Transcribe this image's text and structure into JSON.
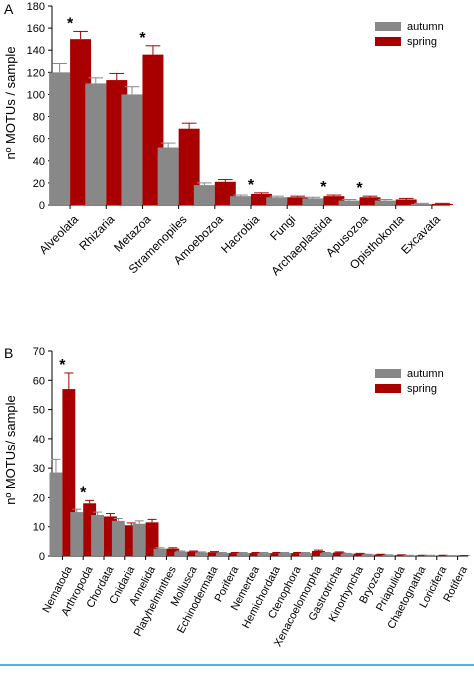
{
  "chart_data": [
    {
      "panel_label": "A",
      "type": "bar",
      "title": "",
      "xlabel": "",
      "ylabel": "nº MOTUs / sample",
      "ylim": [
        0,
        180
      ],
      "yticks": [
        0,
        20,
        40,
        60,
        80,
        100,
        120,
        140,
        160,
        180
      ],
      "legend_position": "top-right",
      "categories": [
        "Alveolata",
        "Rhizaria",
        "Metazoa",
        "Stramenopiles",
        "Amoebozoa",
        "Hacrobia",
        "Fungi",
        "Archaeplastida",
        "Apusozoa",
        "Opisthokonta",
        "Excavata"
      ],
      "series": [
        {
          "name": "autumn",
          "color": "#888888",
          "values": [
            120,
            110,
            100,
            52,
            18,
            8,
            7,
            6,
            4,
            4,
            1
          ],
          "errors": [
            8,
            5,
            7,
            4,
            2,
            1,
            1,
            1,
            1,
            1,
            0.5
          ]
        },
        {
          "name": "spring",
          "color": "#a80000",
          "values": [
            150,
            113,
            136,
            69,
            21,
            10,
            7,
            8,
            7,
            5,
            1
          ],
          "errors": [
            7,
            6,
            8,
            5,
            2,
            1,
            1,
            1,
            1,
            1,
            0.5
          ]
        }
      ],
      "significance": [
        {
          "category": "Alveolata",
          "label": "*"
        },
        {
          "category": "Metazoa",
          "label": "*"
        },
        {
          "category": "Hacrobia",
          "label": "*"
        },
        {
          "category": "Archaeplastida",
          "label": "*"
        },
        {
          "category": "Apusozoa",
          "label": "*"
        }
      ]
    },
    {
      "panel_label": "B",
      "type": "bar",
      "title": "",
      "xlabel": "",
      "ylabel": "nº MOTUs/ sample",
      "ylim": [
        0,
        70
      ],
      "yticks": [
        0,
        10,
        20,
        30,
        40,
        50,
        60,
        70
      ],
      "legend_position": "top-right",
      "categories": [
        "Nematoda",
        "Arthropoda",
        "Chordata",
        "Cnidaria",
        "Annelida",
        "Platyhelminthes",
        "Mollusca",
        "Echinodermata",
        "Porifera",
        "Nemertea",
        "Hemichordata",
        "Ctenophora",
        "Xenacoelomorpha",
        "Gastrotricha",
        "Kinorhyncha",
        "Bryozoa",
        "Priapulida",
        "Chaetognatha",
        "Loricifera",
        "Rotifera"
      ],
      "series": [
        {
          "name": "autumn",
          "color": "#888888",
          "values": [
            28.5,
            15,
            14,
            12,
            11,
            2.5,
            1.5,
            1.2,
            1,
            1,
            1,
            1,
            1,
            1,
            0.8,
            0.5,
            0.3,
            0.2,
            0.2,
            0.1
          ],
          "errors": [
            4.5,
            1,
            1,
            0.8,
            1,
            0.3,
            0.2,
            0.2,
            0.2,
            0.2,
            0.2,
            0.2,
            0.2,
            0.2,
            0.1,
            0.1,
            0.1,
            0.05,
            0.05,
            0.05
          ]
        },
        {
          "name": "spring",
          "color": "#a80000",
          "values": [
            57,
            18,
            13.5,
            10.5,
            11.5,
            2.5,
            1.5,
            1.3,
            1,
            1,
            1,
            1,
            1.7,
            1.2,
            0.8,
            0.5,
            0.3,
            0.2,
            0.2,
            0.1
          ],
          "errors": [
            5.5,
            1,
            1,
            0.8,
            1,
            0.3,
            0.2,
            0.2,
            0.2,
            0.2,
            0.2,
            0.2,
            0.3,
            0.2,
            0.1,
            0.1,
            0.1,
            0.05,
            0.05,
            0.05
          ]
        }
      ],
      "significance": [
        {
          "category": "Nematoda",
          "label": "*"
        },
        {
          "category": "Arthropoda",
          "label": "*"
        }
      ]
    }
  ]
}
